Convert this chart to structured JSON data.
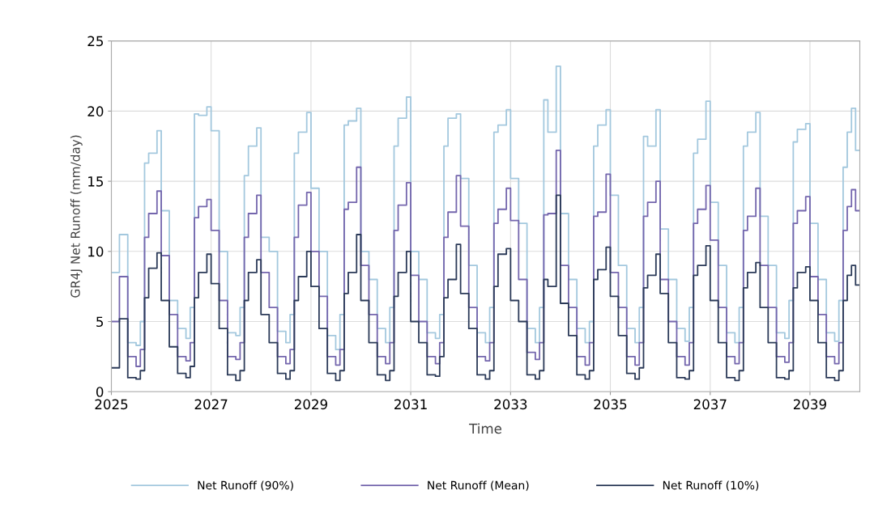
{
  "chart_data": {
    "type": "step",
    "xlabel": "Time",
    "ylabel": "GR4J Net Runoff (mm/day)",
    "x": [
      "2025-01",
      "2025-03",
      "2025-05",
      "2025-07",
      "2025-08",
      "2025-09",
      "2025-10",
      "2025-12",
      "2026-01",
      "2026-03",
      "2026-05",
      "2026-07",
      "2026-08",
      "2026-09",
      "2026-10",
      "2026-12",
      "2027-01",
      "2027-03",
      "2027-05",
      "2027-07",
      "2027-08",
      "2027-09",
      "2027-10",
      "2027-12",
      "2028-01",
      "2028-03",
      "2028-05",
      "2028-07",
      "2028-08",
      "2028-09",
      "2028-10",
      "2028-12",
      "2029-01",
      "2029-03",
      "2029-05",
      "2029-07",
      "2029-08",
      "2029-09",
      "2029-10",
      "2029-12",
      "2030-01",
      "2030-03",
      "2030-05",
      "2030-07",
      "2030-08",
      "2030-09",
      "2030-10",
      "2030-12",
      "2031-01",
      "2031-03",
      "2031-05",
      "2031-07",
      "2031-08",
      "2031-09",
      "2031-10",
      "2031-12",
      "2032-01",
      "2032-03",
      "2032-05",
      "2032-07",
      "2032-08",
      "2032-09",
      "2032-10",
      "2032-12",
      "2033-01",
      "2033-03",
      "2033-05",
      "2033-07",
      "2033-08",
      "2033-09",
      "2033-10",
      "2033-12",
      "2034-01",
      "2034-03",
      "2034-05",
      "2034-07",
      "2034-08",
      "2034-09",
      "2034-10",
      "2034-12",
      "2035-01",
      "2035-03",
      "2035-05",
      "2035-07",
      "2035-08",
      "2035-09",
      "2035-10",
      "2035-12",
      "2036-01",
      "2036-03",
      "2036-05",
      "2036-07",
      "2036-08",
      "2036-09",
      "2036-10",
      "2036-12",
      "2037-01",
      "2037-03",
      "2037-05",
      "2037-07",
      "2037-08",
      "2037-09",
      "2037-10",
      "2037-12",
      "2038-01",
      "2038-03",
      "2038-05",
      "2038-07",
      "2038-08",
      "2038-09",
      "2038-10",
      "2038-12",
      "2039-01",
      "2039-03",
      "2039-05",
      "2039-07",
      "2039-08",
      "2039-09",
      "2039-10",
      "2039-11",
      "2039-12",
      "2040-01"
    ],
    "series": [
      {
        "name": "Net Runoff (90%)",
        "color": "#a3c8de",
        "values": [
          8.5,
          11.2,
          3.5,
          3.3,
          5,
          16.3,
          17,
          18.6,
          12.9,
          6.5,
          4.5,
          3.8,
          6,
          19.8,
          19.7,
          20.3,
          18.6,
          10,
          4.2,
          4.0,
          6,
          15.4,
          17.5,
          18.8,
          11,
          10,
          4.3,
          3.5,
          5.5,
          17,
          18.5,
          19.9,
          14.5,
          10,
          4.0,
          3.0,
          5.5,
          19,
          19.3,
          20.2,
          10,
          8,
          4.5,
          3.5,
          6,
          17.5,
          19.5,
          21,
          10,
          8,
          4.2,
          3.8,
          5.5,
          17.5,
          19.5,
          19.8,
          15.2,
          9,
          4.2,
          3.5,
          6,
          18.5,
          19,
          20.1,
          15.2,
          12,
          4.5,
          3.5,
          6,
          20.8,
          18.5,
          23.2,
          12.7,
          8,
          4.5,
          3.5,
          5,
          17.5,
          19,
          20.1,
          14,
          9,
          4.5,
          3.5,
          6,
          18.2,
          17.5,
          20.1,
          11.6,
          8,
          4.5,
          3.6,
          6,
          17,
          18,
          20.7,
          13.5,
          9,
          4.2,
          3.5,
          6,
          17.5,
          18.5,
          19.9,
          12.5,
          9,
          4.2,
          3.8,
          6.5,
          17.8,
          18.7,
          19.1,
          12,
          8,
          4.2,
          3.6,
          6.5,
          16,
          18.5,
          20.2,
          17.2,
          17.2
        ]
      },
      {
        "name": "Net Runoff (Mean)",
        "color": "#7466ad",
        "values": [
          5,
          8.2,
          2.5,
          1.8,
          3,
          11,
          12.7,
          14.3,
          9.7,
          5.5,
          2.5,
          2.2,
          3.5,
          12.4,
          13.2,
          13.7,
          11.5,
          6.5,
          2.5,
          2.3,
          3.5,
          11,
          12.7,
          14,
          8.5,
          6,
          2.5,
          2.0,
          3.0,
          11,
          13.3,
          14.2,
          10,
          6.8,
          2.5,
          1.9,
          3.0,
          13,
          13.5,
          16,
          9,
          5.5,
          2.5,
          2.0,
          3.5,
          11.5,
          13.3,
          14.9,
          8.3,
          5,
          2.5,
          2.0,
          3.5,
          11,
          12.8,
          15.4,
          11.8,
          6,
          2.5,
          2.2,
          3.5,
          12,
          13,
          14.5,
          12.2,
          8,
          2.8,
          2.3,
          3.5,
          12.6,
          12.7,
          17.2,
          9,
          6,
          2.5,
          1.9,
          3.5,
          12.5,
          12.8,
          15.5,
          8.5,
          6,
          2.5,
          1.9,
          3.5,
          12.5,
          13.5,
          15.0,
          8,
          5,
          2.5,
          1.9,
          3.5,
          12,
          13,
          14.7,
          10.8,
          6,
          2.5,
          2.0,
          3.5,
          11.5,
          12.5,
          14.5,
          9,
          6,
          2.5,
          2.1,
          3.5,
          12,
          12.9,
          13.9,
          8.2,
          5.5,
          2.5,
          2.0,
          3.5,
          11.5,
          13.2,
          14.4,
          12.9,
          12.9
        ]
      },
      {
        "name": "Net Runoff (10%)",
        "color": "#2b3a58",
        "values": [
          1.7,
          5.2,
          1.0,
          0.9,
          1.5,
          6.7,
          8.8,
          9.9,
          6.5,
          3.2,
          1.3,
          1.0,
          1.8,
          6.7,
          8.5,
          9.8,
          7.7,
          4.5,
          1.2,
          0.8,
          1.5,
          6.5,
          8.5,
          9.4,
          5.5,
          3.5,
          1.3,
          0.9,
          1.5,
          6.5,
          8.2,
          10.0,
          7.5,
          4.5,
          1.3,
          0.8,
          1.5,
          7,
          8.5,
          11.2,
          6.5,
          3.5,
          1.2,
          0.8,
          1.5,
          6.8,
          8.5,
          10.0,
          5.0,
          3.5,
          1.2,
          1.1,
          2.5,
          6.7,
          8.0,
          10.5,
          7.0,
          4.5,
          1.2,
          0.9,
          1.5,
          7.5,
          9.8,
          10.2,
          6.5,
          5.0,
          1.2,
          0.9,
          1.5,
          8.0,
          7.5,
          14.0,
          6.3,
          4.0,
          1.2,
          0.9,
          1.5,
          8.0,
          8.7,
          10.3,
          6.8,
          4.0,
          1.3,
          0.9,
          1.7,
          7.4,
          8.3,
          9.8,
          7.0,
          3.5,
          1.0,
          0.9,
          1.5,
          8.3,
          9.0,
          10.4,
          6.5,
          3.5,
          1.0,
          0.8,
          1.5,
          7.4,
          8.5,
          9.2,
          6.0,
          3.5,
          1.0,
          0.9,
          1.5,
          7.4,
          8.5,
          8.9,
          6.5,
          3.5,
          1.0,
          0.8,
          1.5,
          6.5,
          8.3,
          9.0,
          7.6,
          7.6
        ]
      }
    ],
    "xlim": [
      "2025-01-01",
      "2040-01-01"
    ],
    "xticks": [
      "2025",
      "2027",
      "2029",
      "2031",
      "2033",
      "2035",
      "2037",
      "2039"
    ],
    "ylim": [
      0,
      25
    ],
    "yticks": [
      0,
      5,
      10,
      15,
      20,
      25
    ],
    "grid": true,
    "legend": "bottom"
  }
}
